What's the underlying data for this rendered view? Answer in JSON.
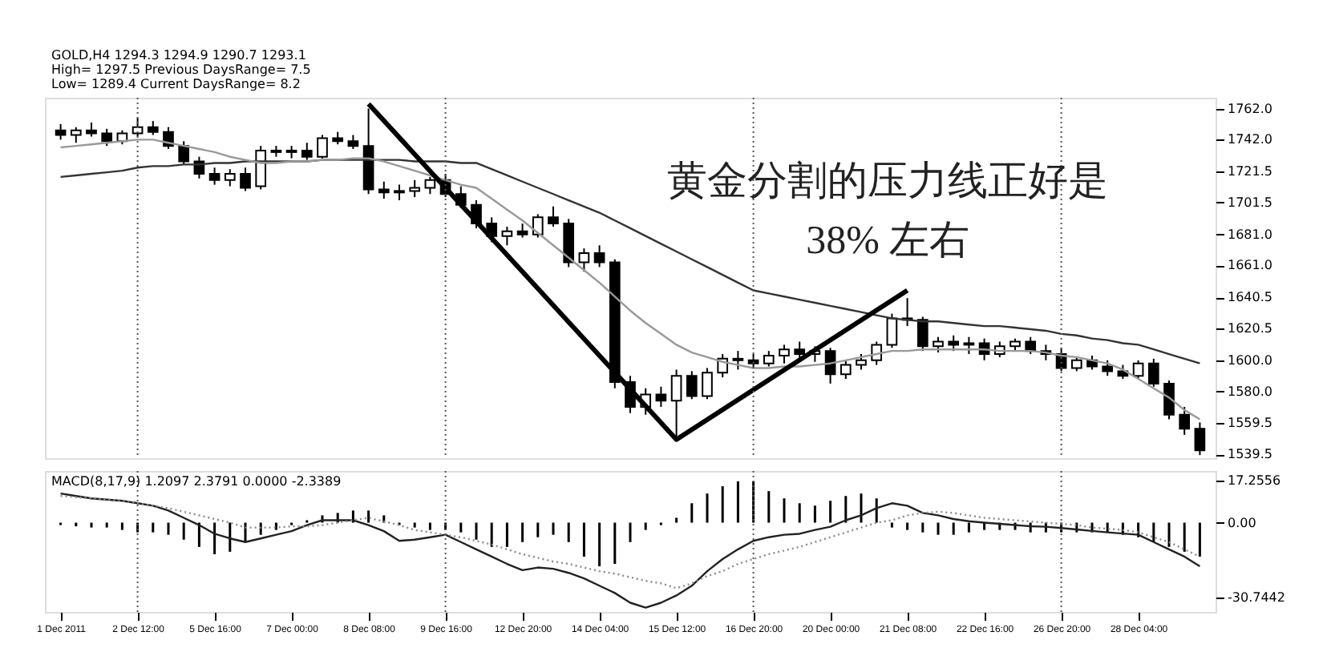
{
  "chart_data": [
    {
      "type": "candlestick",
      "color": "#000000",
      "categories": [
        "1 Dec 2011",
        null,
        null,
        null,
        null,
        "2 Dec 12:00",
        null,
        null,
        null,
        null,
        "5 Dec 16:00",
        null,
        null,
        null,
        null,
        "7 Dec 00:00",
        null,
        null,
        null,
        null,
        "8 Dec 08:00",
        null,
        null,
        null,
        null,
        "9 Dec 16:00",
        null,
        null,
        null,
        null,
        "12 Dec 20:00",
        null,
        null,
        null,
        null,
        "14 Dec 04:00",
        null,
        null,
        null,
        null,
        "15 Dec 12:00",
        null,
        null,
        null,
        null,
        "16 Dec 20:00",
        null,
        null,
        null,
        null,
        "20 Dec 00:00",
        null,
        null,
        null,
        null,
        "21 Dec 08:00",
        null,
        null,
        null,
        null,
        "22 Dec 16:00",
        null,
        null,
        null,
        null,
        "26 Dec 20:00",
        null,
        null,
        null,
        null,
        "28 Dec 04:00",
        null,
        null,
        null,
        null
      ],
      "ohlc": [
        [
          1748,
          1752,
          1742,
          1745
        ],
        [
          1745,
          1750,
          1740,
          1748
        ],
        [
          1748,
          1753,
          1744,
          1746
        ],
        [
          1746,
          1749,
          1738,
          1741
        ],
        [
          1741,
          1748,
          1739,
          1746
        ],
        [
          1746,
          1756,
          1744,
          1750
        ],
        [
          1750,
          1754,
          1745,
          1747
        ],
        [
          1747,
          1750,
          1736,
          1738
        ],
        [
          1738,
          1741,
          1726,
          1728
        ],
        [
          1728,
          1731,
          1717,
          1720
        ],
        [
          1720,
          1724,
          1713,
          1716
        ],
        [
          1716,
          1723,
          1712,
          1720
        ],
        [
          1720,
          1724,
          1709,
          1711
        ],
        [
          1712,
          1738,
          1710,
          1735
        ],
        [
          1735,
          1738,
          1731,
          1734
        ],
        [
          1734,
          1738,
          1730,
          1735
        ],
        [
          1735,
          1740,
          1729,
          1731
        ],
        [
          1731,
          1745,
          1730,
          1743
        ],
        [
          1743,
          1747,
          1739,
          1741
        ],
        [
          1741,
          1745,
          1736,
          1738
        ],
        [
          1738,
          1762,
          1707,
          1710
        ],
        [
          1710,
          1715,
          1704,
          1708
        ],
        [
          1708,
          1713,
          1703,
          1709
        ],
        [
          1709,
          1716,
          1705,
          1711
        ],
        [
          1711,
          1718,
          1707,
          1716
        ],
        [
          1716,
          1720,
          1705,
          1707
        ],
        [
          1707,
          1712,
          1698,
          1700
        ],
        [
          1700,
          1703,
          1685,
          1688
        ],
        [
          1688,
          1692,
          1676,
          1680
        ],
        [
          1680,
          1686,
          1674,
          1683
        ],
        [
          1683,
          1688,
          1679,
          1681
        ],
        [
          1681,
          1694,
          1679,
          1692
        ],
        [
          1692,
          1699,
          1686,
          1688
        ],
        [
          1688,
          1691,
          1660,
          1663
        ],
        [
          1663,
          1672,
          1657,
          1669
        ],
        [
          1669,
          1674,
          1660,
          1663
        ],
        [
          1663,
          1665,
          1582,
          1586
        ],
        [
          1586,
          1590,
          1566,
          1570
        ],
        [
          1570,
          1582,
          1565,
          1578
        ],
        [
          1578,
          1583,
          1570,
          1574
        ],
        [
          1574,
          1594,
          1549,
          1590
        ],
        [
          1590,
          1593,
          1575,
          1577
        ],
        [
          1577,
          1595,
          1575,
          1592
        ],
        [
          1592,
          1604,
          1589,
          1601
        ],
        [
          1601,
          1606,
          1594,
          1600
        ],
        [
          1600,
          1604,
          1595,
          1598
        ],
        [
          1598,
          1606,
          1596,
          1603
        ],
        [
          1603,
          1610,
          1598,
          1607
        ],
        [
          1607,
          1612,
          1600,
          1604
        ],
        [
          1604,
          1609,
          1599,
          1606
        ],
        [
          1606,
          1608,
          1585,
          1591
        ],
        [
          1591,
          1600,
          1588,
          1597
        ],
        [
          1597,
          1604,
          1594,
          1600
        ],
        [
          1600,
          1612,
          1597,
          1610
        ],
        [
          1610,
          1630,
          1608,
          1627
        ],
        [
          1627,
          1640,
          1622,
          1626
        ],
        [
          1626,
          1628,
          1606,
          1609
        ],
        [
          1609,
          1615,
          1605,
          1612
        ],
        [
          1612,
          1616,
          1606,
          1610
        ],
        [
          1610,
          1615,
          1604,
          1611
        ],
        [
          1611,
          1614,
          1600,
          1604
        ],
        [
          1604,
          1612,
          1602,
          1609
        ],
        [
          1609,
          1614,
          1606,
          1612
        ],
        [
          1612,
          1615,
          1604,
          1606
        ],
        [
          1606,
          1610,
          1600,
          1604
        ],
        [
          1604,
          1608,
          1593,
          1595
        ],
        [
          1595,
          1602,
          1593,
          1600
        ],
        [
          1600,
          1603,
          1594,
          1596
        ],
        [
          1596,
          1600,
          1590,
          1593
        ],
        [
          1593,
          1597,
          1588,
          1590
        ],
        [
          1590,
          1600,
          1588,
          1598
        ],
        [
          1598,
          1601,
          1583,
          1585
        ],
        [
          1585,
          1587,
          1562,
          1565
        ],
        [
          1565,
          1570,
          1552,
          1556
        ],
        [
          1556,
          1560,
          1539,
          1542
        ]
      ],
      "series": [
        {
          "type": "line",
          "color": "#333333",
          "values": [
            1718,
            1719,
            1720,
            1721,
            1722,
            1724,
            1725,
            1725,
            1726,
            1726,
            1727,
            1727,
            1728,
            1728,
            1728,
            1728,
            1728,
            1729,
            1729,
            1729,
            1729,
            1729,
            1729,
            1728,
            1728,
            1728,
            1727,
            1727,
            1723,
            1719,
            1715,
            1711,
            1707,
            1703,
            1699,
            1695,
            1690,
            1685,
            1680,
            1675,
            1670,
            1665,
            1660,
            1655,
            1650,
            1645,
            1643,
            1641,
            1639,
            1637,
            1635,
            1633,
            1631,
            1629,
            1627,
            1626,
            1625,
            1625,
            1624,
            1623,
            1622,
            1622,
            1621,
            1620,
            1619,
            1617,
            1616,
            1614,
            1613,
            1611,
            1610,
            1607,
            1604,
            1601,
            1598
          ]
        },
        {
          "type": "line",
          "color": "#999999",
          "values": [
            1737,
            1738,
            1739,
            1740,
            1741,
            1742,
            1742,
            1740,
            1738,
            1736,
            1734,
            1731,
            1729,
            1727,
            1727,
            1728,
            1728,
            1729,
            1729,
            1730,
            1730,
            1728,
            1725,
            1722,
            1719,
            1716,
            1713,
            1711,
            1704,
            1697,
            1690,
            1682,
            1674,
            1666,
            1658,
            1650,
            1641,
            1632,
            1624,
            1617,
            1610,
            1605,
            1602,
            1599,
            1597,
            1595,
            1595,
            1596,
            1596,
            1597,
            1598,
            1600,
            1602,
            1604,
            1606,
            1606,
            1607,
            1607,
            1607,
            1607,
            1607,
            1606,
            1606,
            1606,
            1605,
            1603,
            1602,
            1600,
            1598,
            1594,
            1588,
            1582,
            1576,
            1568,
            1562
          ]
        },
        {
          "type": "line",
          "color": "#000000",
          "x": [
            "8 Dec 08:00",
            "15 Dec 12:00",
            "21 Dec 08:00"
          ],
          "values": [
            1765,
            1549,
            1645
          ]
        }
      ],
      "ylim": [
        1537,
        1769
      ],
      "yticks": [
        {
          "value": 1762,
          "label": "1762.0"
        },
        {
          "value": 1742,
          "label": "1742.0"
        },
        1721.5,
        1701.5,
        {
          "value": 1681,
          "label": "1681.0"
        },
        {
          "value": 1661,
          "label": "1661.0"
        },
        1640.5,
        1620.5,
        {
          "value": 1600,
          "label": "1600.0"
        },
        {
          "value": 1580,
          "label": "1580.0"
        },
        1559.5,
        1539.5
      ],
      "ref_lines": [
        {
          "axis": "x",
          "value": "2 Dec 12:00",
          "line_style": "dotted",
          "color": "#555555"
        },
        {
          "axis": "x",
          "value": "9 Dec 16:00",
          "line_style": "dotted",
          "color": "#555555"
        },
        {
          "axis": "x",
          "value": "16 Dec 20:00",
          "line_style": "dotted",
          "color": "#555555"
        },
        {
          "axis": "x",
          "value": "26 Dec 20:00",
          "line_style": "dotted",
          "color": "#555555"
        }
      ],
      "tick_labels": "y",
      "annotations": [
        "GOLD,H4 1294.3 1294.9 1290.7 1293.1",
        "High= 1297.5 Previous DaysRange= 7.5",
        "Low= 1289.4 Current DaysRange= 8.2",
        "黄金分割的压力线正好是",
        "38% 左右"
      ]
    },
    {
      "type": "bar",
      "categories": [
        "1 Dec 2011",
        null,
        null,
        null,
        null,
        "2 Dec 12:00",
        null,
        null,
        null,
        null,
        "5 Dec 16:00",
        null,
        null,
        null,
        null,
        "7 Dec 00:00",
        null,
        null,
        null,
        null,
        "8 Dec 08:00",
        null,
        null,
        null,
        null,
        "9 Dec 16:00",
        null,
        null,
        null,
        null,
        "12 Dec 20:00",
        null,
        null,
        null,
        null,
        "14 Dec 04:00",
        null,
        null,
        null,
        null,
        "15 Dec 12:00",
        null,
        null,
        null,
        null,
        "16 Dec 20:00",
        null,
        null,
        null,
        null,
        "20 Dec 00:00",
        null,
        null,
        null,
        null,
        "21 Dec 08:00",
        null,
        null,
        null,
        null,
        "22 Dec 16:00",
        null,
        null,
        null,
        null,
        "26 Dec 20:00",
        null,
        null,
        null,
        null,
        "28 Dec 04:00",
        null,
        null,
        null,
        null
      ],
      "series": [
        {
          "type": "bar",
          "color": "#000000",
          "values": [
            -1,
            -1.5,
            -2,
            -2,
            -3,
            -4,
            -4,
            -5,
            -7,
            -10,
            -13,
            -12,
            -8,
            -5,
            -3,
            -1,
            1,
            3,
            4,
            5,
            5,
            3,
            -1,
            -2,
            -3,
            -3,
            -4,
            -7,
            -10,
            -10,
            -8,
            -6,
            -5,
            -8,
            -14,
            -18,
            -17,
            -8,
            -3,
            -1,
            2,
            8,
            12,
            15,
            17,
            17,
            13,
            10,
            8,
            7,
            9,
            11,
            12,
            10,
            -2,
            -3,
            -4,
            -5,
            -5,
            -4,
            -3,
            -3,
            -3,
            -4,
            -4,
            -4,
            -4,
            -4,
            -4,
            -5,
            -6,
            -8,
            -10,
            -12,
            -14
          ]
        },
        {
          "type": "line",
          "color": "#222222",
          "values": [
            12,
            11,
            10,
            9.5,
            9,
            8,
            7,
            5,
            2,
            -1,
            -4.6,
            -6.5,
            -8,
            -6.5,
            -5,
            -3.5,
            -1,
            1,
            1,
            1,
            -1,
            -3.5,
            -7.5,
            -7,
            -6,
            -5,
            -8,
            -11,
            -14,
            -17,
            -19.6,
            -18.5,
            -19,
            -20.7,
            -23,
            -26,
            -29,
            -33,
            -35,
            -33,
            -30,
            -26,
            -20,
            -15,
            -11,
            -7.5,
            -6,
            -5,
            -4.6,
            -3,
            -1.7,
            1,
            3,
            6,
            8,
            7,
            4,
            3,
            1.5,
            0.6,
            0,
            -0.5,
            -1,
            -1.5,
            -1.7,
            -2.2,
            -2.8,
            -3.4,
            -4,
            -4.5,
            -5,
            -8,
            -11,
            -14,
            -18
          ]
        },
        {
          "type": "line",
          "color": "#8a8a8a",
          "line_style": "dotted",
          "values": [
            11,
            10.5,
            10,
            9.5,
            9,
            8,
            7,
            6,
            4.5,
            3,
            1.5,
            0,
            -2,
            -2,
            -2,
            -1.5,
            -1.5,
            -1,
            0,
            1,
            2,
            0.5,
            -1,
            -3,
            -4,
            -5,
            -6,
            -7.5,
            -9,
            -11,
            -13,
            -14.5,
            -16,
            -17,
            -18.5,
            -20,
            -21,
            -22.5,
            -24,
            -25,
            -27,
            -25,
            -22,
            -20,
            -17,
            -15,
            -13,
            -11.5,
            -10,
            -8,
            -6,
            -4,
            -2,
            0,
            1,
            3,
            4,
            4.5,
            4,
            3,
            2,
            1.5,
            1,
            0.5,
            0,
            -0.5,
            -1,
            -2,
            -2.5,
            -3,
            -4,
            -6,
            -8,
            -11,
            -14
          ]
        }
      ],
      "ylim": [
        -36.8,
        21.3
      ],
      "yticks": [
        17.2556,
        {
          "value": 0,
          "label": "0.00"
        },
        -30.7442
      ],
      "ref_lines": [
        {
          "axis": "x",
          "value": "2 Dec 12:00",
          "line_style": "dotted",
          "color": "#555555"
        },
        {
          "axis": "x",
          "value": "9 Dec 16:00",
          "line_style": "dotted",
          "color": "#555555"
        },
        {
          "axis": "x",
          "value": "16 Dec 20:00",
          "line_style": "dotted",
          "color": "#555555"
        },
        {
          "axis": "x",
          "value": "26 Dec 20:00",
          "line_style": "dotted",
          "color": "#555555"
        }
      ],
      "annotations": [
        "MACD(8,17,9) 1.2097 2.3791 0.0000 -2.3389"
      ]
    }
  ]
}
